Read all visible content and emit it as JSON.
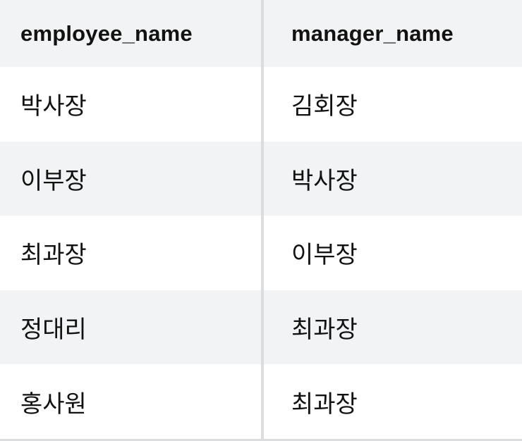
{
  "table": {
    "columns": [
      "employee_name",
      "manager_name"
    ],
    "rows": [
      [
        "박사장",
        "김회장"
      ],
      [
        "이부장",
        "박사장"
      ],
      [
        "최과장",
        "이부장"
      ],
      [
        "정대리",
        "최과장"
      ],
      [
        "홍사원",
        "최과장"
      ]
    ]
  },
  "colors": {
    "header_bg": "#f1f3f4",
    "stripe_bg": "#f1f3f4",
    "row_bg": "#ffffff",
    "divider": "#dcdddf",
    "text": "#121212"
  }
}
